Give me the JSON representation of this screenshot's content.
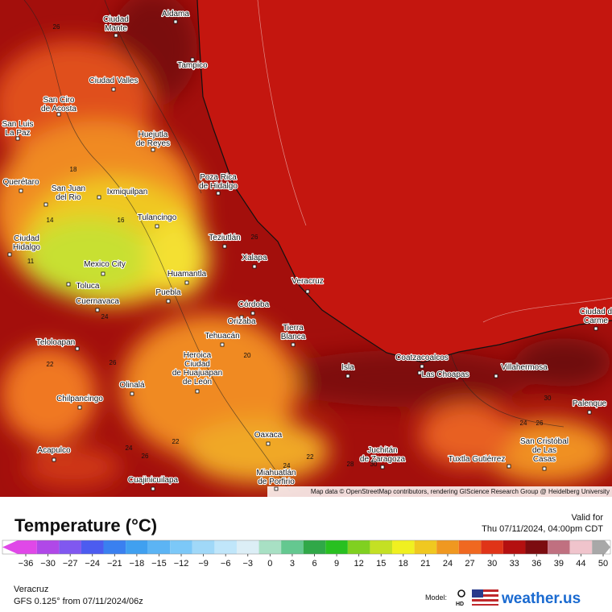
{
  "map": {
    "cities": [
      {
        "lines": [
          "Aldama"
        ]
      },
      {
        "lines": [
          "Ciudad",
          "Mante"
        ]
      },
      {
        "lines": [
          "Tampico"
        ]
      },
      {
        "lines": [
          "Ciudad Valles"
        ]
      },
      {
        "lines": [
          "San Ciro",
          "de Acosta"
        ]
      },
      {
        "lines": [
          "San Luis",
          "La Paz"
        ]
      },
      {
        "lines": [
          "Huejutla",
          "de Reyes"
        ]
      },
      {
        "lines": [
          "Poza Rica",
          "de Hidalgo"
        ]
      },
      {
        "lines": [
          "Querétaro"
        ]
      },
      {
        "lines": [
          "San Juan",
          "del Rio"
        ]
      },
      {
        "lines": [
          "Ixmiquilpan"
        ]
      },
      {
        "lines": [
          "Tulancingo"
        ]
      },
      {
        "lines": [
          "Ciudad",
          "Hidalgo"
        ]
      },
      {
        "lines": [
          "Teziutlán"
        ]
      },
      {
        "lines": [
          "Xalapa"
        ]
      },
      {
        "lines": [
          "Mexico City"
        ]
      },
      {
        "lines": [
          "Veracruz"
        ]
      },
      {
        "lines": [
          "Huamantla"
        ]
      },
      {
        "lines": [
          "Toluca"
        ]
      },
      {
        "lines": [
          "Puebla"
        ]
      },
      {
        "lines": [
          "Cuernavaca"
        ]
      },
      {
        "lines": [
          "Córdoba"
        ]
      },
      {
        "lines": [
          "Orizaba"
        ]
      },
      {
        "lines": [
          "Tierra",
          "Blanca"
        ]
      },
      {
        "lines": [
          "Tehuacán"
        ]
      },
      {
        "lines": [
          "Teloloapan"
        ]
      },
      {
        "lines": [
          "Heroica",
          "Ciudad",
          "de Huajuapan",
          "de León"
        ]
      },
      {
        "lines": [
          "Coatzacoalcos"
        ]
      },
      {
        "lines": [
          "Isla"
        ]
      },
      {
        "lines": [
          "Villahermosa"
        ]
      },
      {
        "lines": [
          "Las Choapas"
        ]
      },
      {
        "lines": [
          "Olinalá"
        ]
      },
      {
        "lines": [
          "Chilpancingo"
        ]
      },
      {
        "lines": [
          "Ciudad d",
          "Carme"
        ]
      },
      {
        "lines": [
          "Palenque"
        ]
      },
      {
        "lines": [
          "Oaxaca"
        ]
      },
      {
        "lines": [
          "San Cristóbal",
          "de Las",
          "Casas"
        ]
      },
      {
        "lines": [
          "Acapulco"
        ]
      },
      {
        "lines": [
          "Tuxtla Gutiérrez"
        ]
      },
      {
        "lines": [
          "Juchitán",
          "de Zaragoza"
        ]
      },
      {
        "lines": [
          "Cuajinicuilapa"
        ]
      },
      {
        "lines": [
          "Miahuatlán",
          "de Porfirio"
        ]
      }
    ],
    "contour_labels": [
      26,
      18,
      14,
      16,
      11,
      26,
      24,
      22,
      26,
      20,
      24,
      22,
      26,
      24,
      22,
      28,
      30,
      30,
      24,
      26
    ],
    "attribution": "Map data © OpenStreetMap contributors, rendering GIScience Research Group @ Heidelberg University"
  },
  "legend": {
    "title": "Temperature (°C)",
    "valid_label": "Valid for",
    "valid_time": "Thu 07/11/2024, 04:00pm CDT",
    "ticks": [
      {
        "value": -36,
        "label": "−36"
      },
      {
        "value": -30,
        "label": "−30"
      },
      {
        "value": -27,
        "label": "−27"
      },
      {
        "value": -24,
        "label": "−24"
      },
      {
        "value": -21,
        "label": "−21"
      },
      {
        "value": -18,
        "label": "−18"
      },
      {
        "value": -15,
        "label": "−15"
      },
      {
        "value": -12,
        "label": "−12"
      },
      {
        "value": -9,
        "label": "−9"
      },
      {
        "value": -6,
        "label": "−6"
      },
      {
        "value": -3,
        "label": "−3"
      },
      0,
      3,
      6,
      9,
      12,
      15,
      18,
      21,
      24,
      27,
      30,
      33,
      36,
      39,
      44,
      50
    ],
    "colors": [
      "#e048e8",
      "#b048e8",
      "#8058f0",
      "#4c5cf0",
      "#3a80f0",
      "#40a0f0",
      "#5cb4f4",
      "#7cc8f8",
      "#a0d8f8",
      "#c0e6fa",
      "#dceef6",
      "#a8e0c4",
      "#64c890",
      "#30a848",
      "#28c020",
      "#80d020",
      "#c4e024",
      "#f0f020",
      "#f0c820",
      "#f09820",
      "#f06820",
      "#e03418",
      "#b41010",
      "#7c0c10",
      "#c07080",
      "#f0c4cc",
      "#a8a8a8"
    ],
    "region": "Veracruz",
    "model_run": "GFS 0.125° from  07/11/2024/06z",
    "model_label": "Model:",
    "hd": "HD",
    "brand": "weather.us"
  }
}
